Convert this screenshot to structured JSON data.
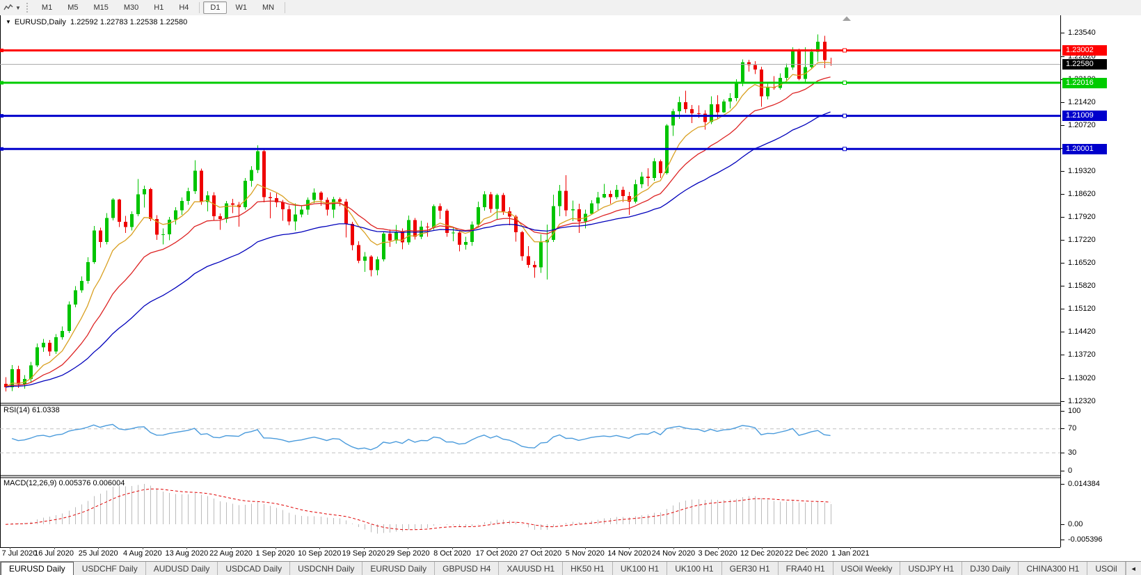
{
  "toolbar": {
    "timeframes": [
      "M1",
      "M5",
      "M15",
      "M30",
      "H1",
      "H4",
      "D1",
      "W1",
      "MN"
    ],
    "active": "D1"
  },
  "header": {
    "collapse_icon": "▼",
    "symbol": "EURUSD,Daily",
    "open": "1.22592",
    "high": "1.22783",
    "low": "1.22538",
    "close": "1.22580"
  },
  "chart_data": {
    "type": "candlestick",
    "symbol": "EURUSD",
    "timeframe": "Daily",
    "ylim": [
      1.1228,
      1.2407
    ],
    "y_ticks": [
      "1.23540",
      "1.22820",
      "1.22120",
      "1.21420",
      "1.20720",
      "1.20020",
      "1.19320",
      "1.18620",
      "1.17920",
      "1.17220",
      "1.16520",
      "1.15820",
      "1.15120",
      "1.14420",
      "1.13720",
      "1.13020",
      "1.12320"
    ],
    "x_labels": [
      "7 Jul 2020",
      "16 Jul 2020",
      "25 Jul 2020",
      "4 Aug 2020",
      "13 Aug 2020",
      "22 Aug 2020",
      "1 Sep 2020",
      "10 Sep 2020",
      "19 Sep 2020",
      "29 Sep 2020",
      "8 Oct 2020",
      "17 Oct 2020",
      "27 Oct 2020",
      "5 Nov 2020",
      "14 Nov 2020",
      "24 Nov 2020",
      "3 Dec 2020",
      "12 Dec 2020",
      "22 Dec 2020",
      "1 Jan 2021"
    ],
    "candles": [
      [
        1.1285,
        1.1305,
        1.1262,
        1.1275
      ],
      [
        1.1275,
        1.1342,
        1.1263,
        1.133
      ],
      [
        1.133,
        1.134,
        1.1272,
        1.1284
      ],
      [
        1.1284,
        1.1312,
        1.127,
        1.13
      ],
      [
        1.13,
        1.1352,
        1.129,
        1.1341
      ],
      [
        1.1341,
        1.1408,
        1.1336,
        1.1396
      ],
      [
        1.1396,
        1.1422,
        1.1383,
        1.141
      ],
      [
        1.141,
        1.1418,
        1.137,
        1.1384
      ],
      [
        1.1384,
        1.1437,
        1.1376,
        1.1427
      ],
      [
        1.1427,
        1.146,
        1.142,
        1.1446
      ],
      [
        1.1446,
        1.1536,
        1.144,
        1.1526
      ],
      [
        1.1526,
        1.1583,
        1.1518,
        1.157
      ],
      [
        1.157,
        1.1612,
        1.1562,
        1.1598
      ],
      [
        1.1598,
        1.167,
        1.159,
        1.1656
      ],
      [
        1.1656,
        1.1766,
        1.165,
        1.1752
      ],
      [
        1.1752,
        1.176,
        1.17,
        1.1717
      ],
      [
        1.1717,
        1.1805,
        1.171,
        1.179
      ],
      [
        1.179,
        1.185,
        1.1783,
        1.1846
      ],
      [
        1.1846,
        1.1848,
        1.1762,
        1.1778
      ],
      [
        1.1778,
        1.1796,
        1.1745,
        1.1762
      ],
      [
        1.1762,
        1.181,
        1.1752,
        1.1802
      ],
      [
        1.1802,
        1.1909,
        1.1795,
        1.1862
      ],
      [
        1.1862,
        1.1888,
        1.1822,
        1.1878
      ],
      [
        1.1878,
        1.1882,
        1.178,
        1.1787
      ],
      [
        1.1787,
        1.1798,
        1.1723,
        1.1739
      ],
      [
        1.1739,
        1.1758,
        1.171,
        1.174
      ],
      [
        1.174,
        1.1793,
        1.1722,
        1.1785
      ],
      [
        1.1785,
        1.1823,
        1.177,
        1.1813
      ],
      [
        1.1813,
        1.1852,
        1.18,
        1.1842
      ],
      [
        1.1842,
        1.1882,
        1.183,
        1.1871
      ],
      [
        1.1871,
        1.1966,
        1.1863,
        1.1934
      ],
      [
        1.1934,
        1.194,
        1.183,
        1.1839
      ],
      [
        1.1839,
        1.1872,
        1.181,
        1.1859
      ],
      [
        1.1859,
        1.1868,
        1.1784,
        1.1795
      ],
      [
        1.1795,
        1.1804,
        1.1754,
        1.1787
      ],
      [
        1.1787,
        1.1842,
        1.1775,
        1.1834
      ],
      [
        1.1834,
        1.1848,
        1.1805,
        1.183
      ],
      [
        1.183,
        1.1839,
        1.1763,
        1.1823
      ],
      [
        1.1823,
        1.1912,
        1.1815,
        1.1903
      ],
      [
        1.1903,
        1.1948,
        1.1885,
        1.1936
      ],
      [
        1.1936,
        1.2011,
        1.1926,
        1.1993
      ],
      [
        1.1993,
        1.1998,
        1.1838,
        1.1853
      ],
      [
        1.1853,
        1.1868,
        1.1789,
        1.185
      ],
      [
        1.185,
        1.1865,
        1.1823,
        1.1838
      ],
      [
        1.1838,
        1.1845,
        1.1781,
        1.1816
      ],
      [
        1.1816,
        1.1828,
        1.1768,
        1.1779
      ],
      [
        1.1779,
        1.1834,
        1.1752,
        1.1801
      ],
      [
        1.1801,
        1.1828,
        1.1792,
        1.1815
      ],
      [
        1.1815,
        1.1852,
        1.18,
        1.1845
      ],
      [
        1.1845,
        1.188,
        1.1836,
        1.1867
      ],
      [
        1.1867,
        1.1872,
        1.1827,
        1.1845
      ],
      [
        1.1845,
        1.1852,
        1.1797,
        1.1815
      ],
      [
        1.1815,
        1.1855,
        1.179,
        1.1847
      ],
      [
        1.1847,
        1.1852,
        1.1826,
        1.184
      ],
      [
        1.184,
        1.1848,
        1.1731,
        1.1772
      ],
      [
        1.1772,
        1.1778,
        1.1692,
        1.1707
      ],
      [
        1.1707,
        1.1719,
        1.1652,
        1.166
      ],
      [
        1.166,
        1.1686,
        1.1626,
        1.1672
      ],
      [
        1.1672,
        1.1677,
        1.1612,
        1.1631
      ],
      [
        1.1631,
        1.1672,
        1.1615,
        1.1664
      ],
      [
        1.1664,
        1.175,
        1.1658,
        1.1742
      ],
      [
        1.1742,
        1.1755,
        1.1702,
        1.1721
      ],
      [
        1.1721,
        1.1769,
        1.1712,
        1.1748
      ],
      [
        1.1748,
        1.1758,
        1.1695,
        1.1716
      ],
      [
        1.1716,
        1.1797,
        1.1708,
        1.1784
      ],
      [
        1.1784,
        1.179,
        1.1724,
        1.1733
      ],
      [
        1.1733,
        1.1781,
        1.1725,
        1.1764
      ],
      [
        1.1764,
        1.1775,
        1.1733,
        1.1761
      ],
      [
        1.1761,
        1.1831,
        1.1754,
        1.1826
      ],
      [
        1.1826,
        1.1834,
        1.1787,
        1.1812
      ],
      [
        1.1812,
        1.1818,
        1.1733,
        1.1745
      ],
      [
        1.1745,
        1.1762,
        1.1719,
        1.1746
      ],
      [
        1.1746,
        1.1753,
        1.1688,
        1.1708
      ],
      [
        1.1708,
        1.1733,
        1.1694,
        1.1717
      ],
      [
        1.1717,
        1.1779,
        1.1705,
        1.177
      ],
      [
        1.177,
        1.184,
        1.1762,
        1.1823
      ],
      [
        1.1823,
        1.1871,
        1.1812,
        1.1862
      ],
      [
        1.1862,
        1.1869,
        1.1806,
        1.1818
      ],
      [
        1.1818,
        1.1864,
        1.1786,
        1.186
      ],
      [
        1.186,
        1.1866,
        1.18,
        1.181
      ],
      [
        1.181,
        1.1823,
        1.1768,
        1.1794
      ],
      [
        1.1794,
        1.1799,
        1.1718,
        1.1747
      ],
      [
        1.1747,
        1.1751,
        1.166,
        1.1674
      ],
      [
        1.1674,
        1.1704,
        1.1639,
        1.1647
      ],
      [
        1.1647,
        1.1659,
        1.1608,
        1.164
      ],
      [
        1.164,
        1.174,
        1.1623,
        1.1716
      ],
      [
        1.1716,
        1.177,
        1.1603,
        1.1723
      ],
      [
        1.1723,
        1.1861,
        1.1717,
        1.1826
      ],
      [
        1.1826,
        1.189,
        1.1795,
        1.1873
      ],
      [
        1.1873,
        1.192,
        1.1795,
        1.1813
      ],
      [
        1.1813,
        1.1843,
        1.178,
        1.1816
      ],
      [
        1.1816,
        1.1833,
        1.1745,
        1.1779
      ],
      [
        1.1779,
        1.1815,
        1.1758,
        1.1803
      ],
      [
        1.1803,
        1.1844,
        1.1799,
        1.1834
      ],
      [
        1.1834,
        1.1869,
        1.1814,
        1.1852
      ],
      [
        1.1852,
        1.1894,
        1.185,
        1.1863
      ],
      [
        1.1863,
        1.1874,
        1.1833,
        1.1853
      ],
      [
        1.1853,
        1.1891,
        1.1847,
        1.1876
      ],
      [
        1.1876,
        1.1885,
        1.1839,
        1.1857
      ],
      [
        1.1857,
        1.1869,
        1.18,
        1.184
      ],
      [
        1.184,
        1.1906,
        1.1834,
        1.1893
      ],
      [
        1.1893,
        1.193,
        1.1881,
        1.1916
      ],
      [
        1.1916,
        1.1941,
        1.1886,
        1.1912
      ],
      [
        1.1912,
        1.1972,
        1.1903,
        1.1963
      ],
      [
        1.1963,
        1.1968,
        1.1912,
        1.1926
      ],
      [
        1.1926,
        1.2076,
        1.1922,
        1.2071
      ],
      [
        1.2071,
        1.2122,
        1.204,
        1.2115
      ],
      [
        1.2115,
        1.2159,
        1.2092,
        1.2142
      ],
      [
        1.2142,
        1.2177,
        1.211,
        1.2121
      ],
      [
        1.2121,
        1.2134,
        1.2079,
        1.2109
      ],
      [
        1.2109,
        1.2133,
        1.2095,
        1.2107
      ],
      [
        1.2107,
        1.2118,
        1.2059,
        1.2082
      ],
      [
        1.2082,
        1.216,
        1.2076,
        1.2136
      ],
      [
        1.2136,
        1.2164,
        1.2093,
        1.2112
      ],
      [
        1.2112,
        1.2151,
        1.211,
        1.2145
      ],
      [
        1.2145,
        1.217,
        1.2123,
        1.2155
      ],
      [
        1.2155,
        1.2212,
        1.2146,
        1.2199
      ],
      [
        1.2199,
        1.2273,
        1.2191,
        1.2264
      ],
      [
        1.2264,
        1.2272,
        1.2236,
        1.2256
      ],
      [
        1.2256,
        1.2267,
        1.2228,
        1.2242
      ],
      [
        1.2242,
        1.225,
        1.2129,
        1.216
      ],
      [
        1.216,
        1.2203,
        1.2151,
        1.2189
      ],
      [
        1.2189,
        1.2222,
        1.218,
        1.2186
      ],
      [
        1.2186,
        1.223,
        1.218,
        1.2216
      ],
      [
        1.2216,
        1.226,
        1.2209,
        1.2248
      ],
      [
        1.2248,
        1.231,
        1.2241,
        1.2299
      ],
      [
        1.2299,
        1.2305,
        1.2209,
        1.2213
      ],
      [
        1.2213,
        1.231,
        1.2205,
        1.2249
      ],
      [
        1.2249,
        1.2304,
        1.2245,
        1.2296
      ],
      [
        1.2296,
        1.2349,
        1.2266,
        1.2327
      ],
      [
        1.2327,
        1.2345,
        1.2246,
        1.227
      ],
      [
        1.2259,
        1.2278,
        1.2254,
        1.2258
      ]
    ],
    "colors": {
      "up": "#00C400",
      "down": "#EE0000",
      "ma_fast": "#D9A021",
      "ma_mid": "#DD2222",
      "ma_slow": "#0000BB",
      "bid_line": "#ABABAB",
      "rsi": "#4A9BDC",
      "macd_hist": "#BBBBBB",
      "macd_signal": "#E00000",
      "level_dash": "#C0C0C0",
      "shift_marker": "#A0A0A0"
    },
    "moving_averages": [
      {
        "period": 8,
        "color_key": "ma_fast"
      },
      {
        "period": 18,
        "color_key": "ma_mid"
      },
      {
        "period": 40,
        "color_key": "ma_slow"
      }
    ],
    "hlines": [
      {
        "price": 1.23002,
        "label": "1.23002",
        "color": "#FF0000"
      },
      {
        "price": 1.22016,
        "label": "1.22016",
        "color": "#00CC00"
      },
      {
        "price": 1.21009,
        "label": "1.21009",
        "color": "#0000CC"
      },
      {
        "price": 1.20001,
        "label": "1.20001",
        "color": "#0000CC"
      }
    ],
    "current_price": {
      "value": 1.2258,
      "label": "1.22580",
      "label_bg": "#000000"
    },
    "rsi": {
      "name": "RSI(14)",
      "value_label": "61.0338",
      "period": 14,
      "levels": [
        70,
        30
      ],
      "axis_labels": [
        100,
        70,
        30,
        0
      ],
      "range": [
        0,
        100
      ]
    },
    "macd": {
      "name": "MACD(12,26,9)",
      "macd_label": "0.005376",
      "signal_label": "0.006004",
      "fast": 12,
      "slow": 26,
      "signal": 9,
      "axis_labels": [
        {
          "text": "0.014384",
          "value": 0.014384
        },
        {
          "text": "0.00",
          "value": 0
        },
        {
          "text": "-0.005396",
          "value": -0.005396
        }
      ],
      "range": [
        -0.005396,
        0.014384
      ]
    }
  },
  "tabbar": {
    "tabs": [
      "EURUSD Daily",
      "USDCHF Daily",
      "AUDUSD Daily",
      "USDCAD Daily",
      "USDCNH Daily",
      "EURUSD Daily",
      "GBPUSD H4",
      "XAUUSD H1",
      "HK50 H1",
      "UK100 H1",
      "UK100 H1",
      "GER30 H1",
      "FRA40 H1",
      "USOil Weekly",
      "USDJPY H1",
      "DJ30 Daily",
      "CHINA300 H1",
      "USOil"
    ],
    "active_index": 0,
    "scroll_left_icon": "◄",
    "scroll_right_icon": "►"
  }
}
